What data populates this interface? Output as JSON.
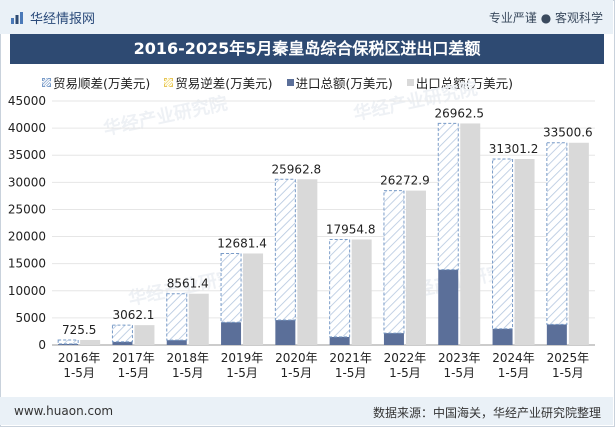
{
  "header": {
    "brand": "华经情报网",
    "tagline": "专业严谨 ● 客观科学"
  },
  "watermark": "华经产业研究院",
  "footer": {
    "site": "www.huaon.com",
    "source": "数据来源：中国海关，华经产业研究院整理"
  },
  "colors": {
    "import": "#5b6f99",
    "export": "#d9d9d9",
    "surplus_stroke": "#7a9cc8",
    "deficit": "#f5e08c"
  },
  "chart_data": {
    "type": "bar",
    "title": "2016-2025年5月秦皇岛综合保税区进出口差额",
    "categories": [
      "2016年\n1-5月",
      "2017年\n1-5月",
      "2018年\n1-5月",
      "2019年\n1-5月",
      "2020年\n1-5月",
      "2021年\n1-5月",
      "2022年\n1-5月",
      "2023年\n1-5月",
      "2024年\n1-5月",
      "2025年\n1-5月"
    ],
    "series": [
      {
        "name": "贸易顺差(万美元)",
        "values": [
          725.5,
          3062.1,
          8561.4,
          12681.4,
          25962.8,
          17954.8,
          26272.9,
          26962.5,
          31301.2,
          33500.6
        ]
      },
      {
        "name": "贸易逆差(万美元)",
        "values": [
          0,
          0,
          0,
          0,
          0,
          0,
          0,
          0,
          0,
          0
        ]
      },
      {
        "name": "进口总额(万美元)",
        "values": [
          200,
          600,
          900,
          4200,
          4600,
          1500,
          2200,
          13900,
          3000,
          3800
        ]
      },
      {
        "name": "出口总额(万美元)",
        "values": [
          925.5,
          3662.1,
          9461.4,
          16881.4,
          30562.8,
          19454.8,
          28472.9,
          40862.5,
          34301.2,
          37300.6
        ]
      }
    ],
    "data_labels": [
      "725.5",
      "3062.1",
      "8561.4",
      "12681.4",
      "25962.8",
      "17954.8",
      "26272.9",
      "26962.5",
      "31301.2",
      "33500.6"
    ],
    "ylim": [
      0,
      45000
    ],
    "yticks": [
      0,
      5000,
      10000,
      15000,
      20000,
      25000,
      30000,
      35000,
      40000,
      45000
    ],
    "xlabel": "",
    "ylabel": "",
    "legend_position": "top"
  }
}
